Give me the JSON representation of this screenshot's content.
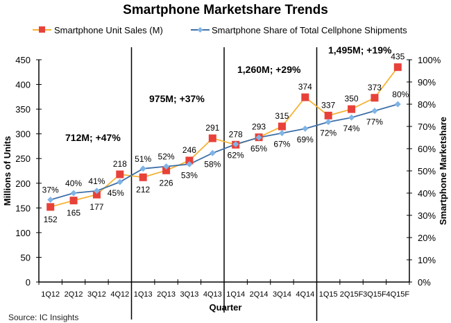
{
  "chart_data": {
    "type": "line",
    "title": "Smartphone Marketshare Trends",
    "xlabel": "Quarter",
    "ylabel": "Millions of Units",
    "y2label": "Smartphone Marketshare",
    "source": "Source: IC Insights",
    "categories": [
      "1Q12",
      "2Q12",
      "3Q12",
      "4Q12",
      "1Q13",
      "2Q13",
      "3Q13",
      "4Q13",
      "1Q14",
      "2Q14",
      "3Q14",
      "4Q14",
      "1Q15",
      "2Q15F",
      "3Q15F",
      "4Q15F"
    ],
    "ylim": [
      0,
      450
    ],
    "yticks": [
      0,
      50,
      100,
      150,
      200,
      250,
      300,
      350,
      400,
      450
    ],
    "y2lim": [
      0,
      100
    ],
    "y2ticks": [
      "0%",
      "10%",
      "20%",
      "30%",
      "40%",
      "50%",
      "60%",
      "70%",
      "80%",
      "90%",
      "100%"
    ],
    "legend_position": "top",
    "grid": false,
    "series": [
      {
        "name": "Smartphone Unit Sales (M)",
        "axis": "left",
        "line_color": "#f5b335",
        "marker_color": "#e8413a",
        "marker": "square",
        "values": [
          152,
          165,
          177,
          218,
          212,
          226,
          246,
          291,
          278,
          293,
          315,
          374,
          337,
          350,
          373,
          435
        ]
      },
      {
        "name": "Smartphone Share of Total Cellphone Shipments",
        "axis": "right",
        "line_color": "#3d6fa8",
        "marker_color": "#7fb4e6",
        "marker": "diamond",
        "values": [
          37,
          40,
          41,
          45,
          51,
          52,
          53,
          58,
          62,
          65,
          67,
          69,
          72,
          74,
          77,
          80
        ]
      }
    ],
    "annotations": [
      "712M; +47%",
      "975M; +37%",
      "1,260M; +29%",
      "1,495M; +19%"
    ]
  }
}
